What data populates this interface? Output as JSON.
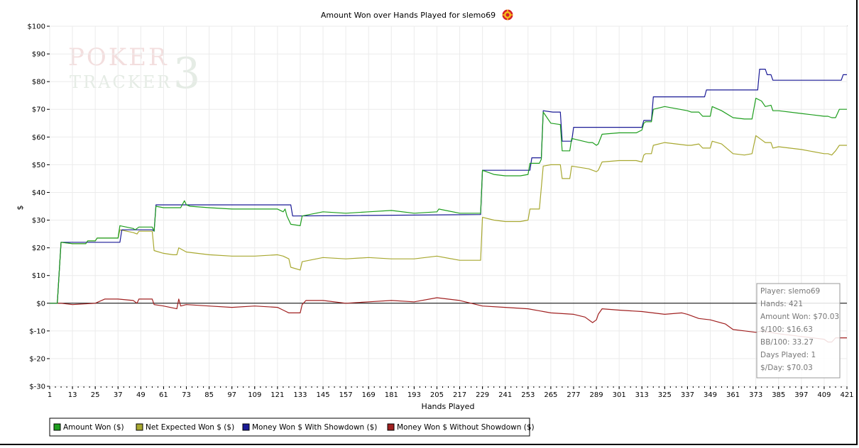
{
  "title": "Amount Won over Hands Played for slemo69",
  "watermark": {
    "line1": "POKER",
    "line2": "TRACKER",
    "number": "3"
  },
  "chart_data": {
    "type": "line",
    "xlabel": "Hands Played",
    "ylabel": "$",
    "xlim": [
      1,
      421
    ],
    "ylim": [
      -30,
      100
    ],
    "x_ticks": [
      1,
      13,
      25,
      37,
      49,
      61,
      73,
      85,
      97,
      109,
      121,
      133,
      145,
      157,
      169,
      181,
      193,
      205,
      217,
      229,
      241,
      253,
      265,
      277,
      289,
      301,
      313,
      325,
      337,
      349,
      361,
      373,
      385,
      397,
      409,
      421
    ],
    "y_ticks": [
      -30,
      -20,
      -10,
      0,
      10,
      20,
      30,
      40,
      50,
      60,
      70,
      80,
      90,
      100
    ],
    "y_tick_labels": [
      "$-30",
      "$-20",
      "$-10",
      "$0",
      "$10",
      "$20",
      "$30",
      "$40",
      "$50",
      "$60",
      "$70",
      "$80",
      "$90",
      "$100"
    ],
    "grid": true,
    "legend_position": "bottom-left",
    "series": [
      {
        "name": "Amount Won ($)",
        "color": "#1e9e1e",
        "points": [
          [
            1,
            0
          ],
          [
            5,
            0
          ],
          [
            7,
            22
          ],
          [
            13,
            21.5
          ],
          [
            20,
            21.5
          ],
          [
            21,
            22.5
          ],
          [
            25,
            22.5
          ],
          [
            26,
            23.5
          ],
          [
            37,
            23.5
          ],
          [
            38,
            28
          ],
          [
            45,
            27
          ],
          [
            46,
            26.5
          ],
          [
            48,
            27.5
          ],
          [
            55,
            27.5
          ],
          [
            56,
            26
          ],
          [
            57,
            35
          ],
          [
            61,
            34.5
          ],
          [
            70,
            34.5
          ],
          [
            72,
            37
          ],
          [
            73,
            35.5
          ],
          [
            75,
            35
          ],
          [
            85,
            34.5
          ],
          [
            97,
            34
          ],
          [
            105,
            34
          ],
          [
            109,
            34
          ],
          [
            121,
            34
          ],
          [
            124,
            33
          ],
          [
            125,
            34
          ],
          [
            126,
            31.5
          ],
          [
            128,
            28.5
          ],
          [
            133,
            28
          ],
          [
            134,
            31.5
          ],
          [
            145,
            33
          ],
          [
            157,
            32.5
          ],
          [
            169,
            33
          ],
          [
            181,
            33.5
          ],
          [
            193,
            32.5
          ],
          [
            205,
            33
          ],
          [
            206,
            34
          ],
          [
            217,
            32.5
          ],
          [
            228,
            32.5
          ],
          [
            229,
            48
          ],
          [
            235,
            46.5
          ],
          [
            241,
            46
          ],
          [
            249,
            46
          ],
          [
            253,
            46.5
          ],
          [
            254,
            50.5
          ],
          [
            259,
            50.5
          ],
          [
            260,
            52
          ],
          [
            261,
            69
          ],
          [
            265,
            65
          ],
          [
            270,
            64.5
          ],
          [
            271,
            55
          ],
          [
            275,
            55
          ],
          [
            276,
            59.5
          ],
          [
            285,
            58
          ],
          [
            287,
            58
          ],
          [
            289,
            57
          ],
          [
            290,
            57.5
          ],
          [
            292,
            61
          ],
          [
            301,
            61.5
          ],
          [
            310,
            61.5
          ],
          [
            313,
            62.5
          ],
          [
            314,
            65
          ],
          [
            315,
            65.5
          ],
          [
            318,
            65.5
          ],
          [
            319,
            70
          ],
          [
            325,
            71
          ],
          [
            337,
            69.5
          ],
          [
            339,
            69
          ],
          [
            343,
            69
          ],
          [
            345,
            67.5
          ],
          [
            349,
            67.5
          ],
          [
            350,
            71
          ],
          [
            355,
            69.5
          ],
          [
            361,
            67
          ],
          [
            367,
            66.5
          ],
          [
            371,
            66.5
          ],
          [
            373,
            74
          ],
          [
            376,
            73
          ],
          [
            378,
            71
          ],
          [
            381,
            71.5
          ],
          [
            382,
            69.5
          ],
          [
            385,
            69.5
          ],
          [
            397,
            68.5
          ],
          [
            409,
            67.5
          ],
          [
            411,
            67.5
          ],
          [
            413,
            67
          ],
          [
            415,
            67
          ],
          [
            417,
            70
          ],
          [
            421,
            70
          ]
        ]
      },
      {
        "name": "Net Expected Won $ ($)",
        "color": "#a8a830",
        "points": [
          [
            1,
            0
          ],
          [
            5,
            0
          ],
          [
            7,
            22
          ],
          [
            13,
            21.5
          ],
          [
            20,
            21.5
          ],
          [
            21,
            22.5
          ],
          [
            25,
            22.5
          ],
          [
            26,
            23.5
          ],
          [
            37,
            23.5
          ],
          [
            38,
            26.5
          ],
          [
            45,
            25.5
          ],
          [
            47,
            25
          ],
          [
            48,
            26
          ],
          [
            55,
            26
          ],
          [
            56,
            19
          ],
          [
            61,
            18
          ],
          [
            66,
            17.5
          ],
          [
            68,
            17.5
          ],
          [
            69,
            20
          ],
          [
            73,
            18.5
          ],
          [
            85,
            17.5
          ],
          [
            97,
            17
          ],
          [
            109,
            17
          ],
          [
            121,
            17.5
          ],
          [
            124,
            17
          ],
          [
            127,
            16
          ],
          [
            128,
            13
          ],
          [
            133,
            12
          ],
          [
            134,
            15
          ],
          [
            145,
            16.5
          ],
          [
            157,
            16
          ],
          [
            169,
            16.5
          ],
          [
            181,
            16
          ],
          [
            193,
            16
          ],
          [
            205,
            17
          ],
          [
            217,
            15.5
          ],
          [
            228,
            15.5
          ],
          [
            229,
            31
          ],
          [
            235,
            30
          ],
          [
            241,
            29.5
          ],
          [
            249,
            29.5
          ],
          [
            253,
            30
          ],
          [
            254,
            34
          ],
          [
            259,
            34
          ],
          [
            261,
            49.5
          ],
          [
            265,
            50
          ],
          [
            270,
            50
          ],
          [
            271,
            45
          ],
          [
            275,
            45
          ],
          [
            276,
            49.5
          ],
          [
            285,
            48.5
          ],
          [
            287,
            48
          ],
          [
            289,
            47.5
          ],
          [
            290,
            48
          ],
          [
            292,
            51
          ],
          [
            301,
            51.5
          ],
          [
            310,
            51.5
          ],
          [
            313,
            51
          ],
          [
            314,
            53.5
          ],
          [
            315,
            54
          ],
          [
            318,
            54
          ],
          [
            319,
            57
          ],
          [
            325,
            58
          ],
          [
            337,
            57
          ],
          [
            339,
            57
          ],
          [
            343,
            57.5
          ],
          [
            345,
            56
          ],
          [
            349,
            56
          ],
          [
            350,
            58.5
          ],
          [
            355,
            57.5
          ],
          [
            361,
            54
          ],
          [
            367,
            53.5
          ],
          [
            371,
            54
          ],
          [
            373,
            60.5
          ],
          [
            376,
            59
          ],
          [
            378,
            58
          ],
          [
            381,
            58
          ],
          [
            382,
            56
          ],
          [
            385,
            56.5
          ],
          [
            397,
            55.5
          ],
          [
            409,
            54
          ],
          [
            411,
            54
          ],
          [
            413,
            53.5
          ],
          [
            415,
            55
          ],
          [
            417,
            57
          ],
          [
            421,
            57
          ]
        ]
      },
      {
        "name": "Money Won $ With Showdown ($)",
        "color": "#1a1a96",
        "points": [
          [
            1,
            0
          ],
          [
            5,
            0
          ],
          [
            7,
            22
          ],
          [
            21,
            22
          ],
          [
            38,
            22
          ],
          [
            39,
            26.5
          ],
          [
            55,
            26.5
          ],
          [
            56,
            26
          ],
          [
            57,
            35.5
          ],
          [
            128,
            35.5
          ],
          [
            129,
            31.5
          ],
          [
            228,
            32
          ],
          [
            229,
            48
          ],
          [
            254,
            48
          ],
          [
            255,
            52.5
          ],
          [
            260,
            52.5
          ],
          [
            261,
            69.5
          ],
          [
            266,
            69
          ],
          [
            270,
            69
          ],
          [
            271,
            58.5
          ],
          [
            276,
            58.5
          ],
          [
            277,
            63.5
          ],
          [
            313,
            63.5
          ],
          [
            314,
            66
          ],
          [
            318,
            66
          ],
          [
            319,
            74.5
          ],
          [
            346,
            74.5
          ],
          [
            347,
            77
          ],
          [
            374,
            77
          ],
          [
            375,
            84.5
          ],
          [
            378,
            84.5
          ],
          [
            379,
            82.5
          ],
          [
            381,
            82.5
          ],
          [
            382,
            80.5
          ],
          [
            418,
            80.5
          ],
          [
            419,
            82.5
          ],
          [
            421,
            82.5
          ]
        ]
      },
      {
        "name": "Money Won $ Without Showdown ($)",
        "color": "#a02020",
        "points": [
          [
            1,
            0
          ],
          [
            5,
            0
          ],
          [
            7,
            0
          ],
          [
            13,
            -0.5
          ],
          [
            25,
            0
          ],
          [
            30,
            1.5
          ],
          [
            37,
            1.5
          ],
          [
            45,
            1
          ],
          [
            47,
            0
          ],
          [
            48,
            1.5
          ],
          [
            55,
            1.5
          ],
          [
            56,
            -0.5
          ],
          [
            61,
            -1
          ],
          [
            68,
            -2
          ],
          [
            69,
            1.5
          ],
          [
            70,
            -1
          ],
          [
            73,
            -0.5
          ],
          [
            85,
            -1
          ],
          [
            97,
            -1.5
          ],
          [
            109,
            -1
          ],
          [
            121,
            -1.5
          ],
          [
            124,
            -2.5
          ],
          [
            127,
            -3.5
          ],
          [
            133,
            -3.5
          ],
          [
            134,
            -0.5
          ],
          [
            136,
            1
          ],
          [
            145,
            1
          ],
          [
            157,
            0
          ],
          [
            169,
            0.5
          ],
          [
            181,
            1
          ],
          [
            193,
            0.5
          ],
          [
            205,
            2
          ],
          [
            217,
            1
          ],
          [
            229,
            -1
          ],
          [
            241,
            -1.5
          ],
          [
            253,
            -2
          ],
          [
            265,
            -3.5
          ],
          [
            277,
            -4
          ],
          [
            283,
            -5
          ],
          [
            287,
            -7
          ],
          [
            289,
            -6
          ],
          [
            290,
            -4
          ],
          [
            292,
            -2
          ],
          [
            301,
            -2.5
          ],
          [
            313,
            -3
          ],
          [
            325,
            -4
          ],
          [
            334,
            -3.5
          ],
          [
            337,
            -4
          ],
          [
            343,
            -5.5
          ],
          [
            349,
            -6
          ],
          [
            357,
            -7.5
          ],
          [
            361,
            -9.5
          ],
          [
            367,
            -10
          ],
          [
            373,
            -10.5
          ],
          [
            376,
            -10
          ],
          [
            385,
            -11
          ],
          [
            397,
            -12
          ],
          [
            409,
            -13
          ],
          [
            411,
            -14
          ],
          [
            413,
            -14
          ],
          [
            415,
            -12.5
          ],
          [
            421,
            -12.5
          ]
        ]
      }
    ],
    "info_box": [
      "Player: slemo69",
      "Hands: 421",
      "Amount Won: $70.03",
      "$/100: $16.63",
      "BB/100: 33.27",
      "Days Played: 1",
      "$/Day: $70.03"
    ]
  }
}
